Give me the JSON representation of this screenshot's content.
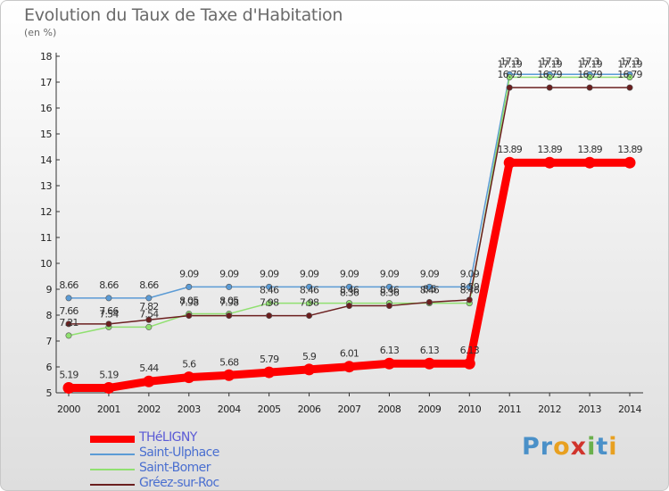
{
  "title": "Evolution du Taux de Taxe d'Habitation",
  "unit_label": "(en %)",
  "logo": {
    "parts": [
      {
        "text": "Pr",
        "color": "#4a90c8"
      },
      {
        "text": "o",
        "color": "#e8a020"
      },
      {
        "text": "x",
        "color": "#d0342c"
      },
      {
        "text": "i",
        "color": "#6ab04c"
      },
      {
        "text": "t",
        "color": "#4a90c8"
      },
      {
        "text": "i",
        "color": "#e8a020"
      }
    ]
  },
  "chart_data": {
    "type": "line",
    "x": [
      "2000",
      "2001",
      "2002",
      "2003",
      "2004",
      "2005",
      "2006",
      "2007",
      "2008",
      "2009",
      "2010",
      "2011",
      "2012",
      "2013",
      "2014"
    ],
    "ylim": [
      5,
      18
    ],
    "yticks": [
      "5",
      "6",
      "7",
      "8",
      "9",
      "10",
      "11",
      "12",
      "13",
      "14",
      "15",
      "16",
      "17",
      "18"
    ],
    "grid": false,
    "legend_position": "bottom-left",
    "series": [
      {
        "name": "THéLIGNY",
        "color": "#ff0000",
        "values": [
          5.19,
          5.19,
          5.44,
          5.6,
          5.68,
          5.79,
          5.9,
          6.01,
          6.13,
          6.13,
          6.13,
          13.89,
          13.89,
          13.89,
          13.89
        ],
        "labels": [
          "5.19",
          "5.19",
          "5.44",
          "5.6",
          "5.68",
          "5.79",
          "5.9",
          "6.01",
          "6.13",
          "6.13",
          "6.13",
          "13.89",
          "13.89",
          "13.89",
          "13.89"
        ]
      },
      {
        "name": "Saint-Ulphace",
        "color": "#5b9bd5",
        "values": [
          8.66,
          8.66,
          8.66,
          9.09,
          9.09,
          9.09,
          9.09,
          9.09,
          9.09,
          9.09,
          9.09,
          17.3,
          17.3,
          17.3,
          17.3
        ],
        "labels": [
          "8.66",
          "8.66",
          "8.66",
          "9.09",
          "9.09",
          "9.09",
          "9.09",
          "9.09",
          "9.09",
          "9.09",
          "9.09",
          "17.3",
          "17.3",
          "17.3",
          "17.3"
        ]
      },
      {
        "name": "Saint-Bomer",
        "color": "#90e070",
        "values": [
          7.21,
          7.54,
          7.54,
          8.05,
          8.05,
          8.46,
          8.46,
          8.46,
          8.46,
          8.46,
          8.46,
          17.19,
          17.19,
          17.19,
          17.19
        ],
        "labels": [
          "7.21",
          "7.54",
          "7.54",
          "8.05",
          "8.05",
          "8.46",
          "8.46",
          "8.46",
          "8.46",
          "8.46",
          "8.46",
          "17.19",
          "17.19",
          "17.19",
          "17.19"
        ]
      },
      {
        "name": "Gréez-sur-Roc",
        "color": "#6b1f1f",
        "values": [
          7.66,
          7.66,
          7.82,
          7.98,
          7.98,
          7.98,
          7.98,
          8.36,
          8.36,
          8.5,
          8.59,
          16.79,
          16.79,
          16.79,
          16.79
        ],
        "labels": [
          "7.66",
          "7.66",
          "7.82",
          "7.98",
          "7.98",
          "7.98",
          "7.98",
          "8.36",
          "8.36",
          "8.5",
          "8.59",
          "16.79",
          "16.79",
          "16.79",
          "16.79"
        ]
      }
    ]
  }
}
